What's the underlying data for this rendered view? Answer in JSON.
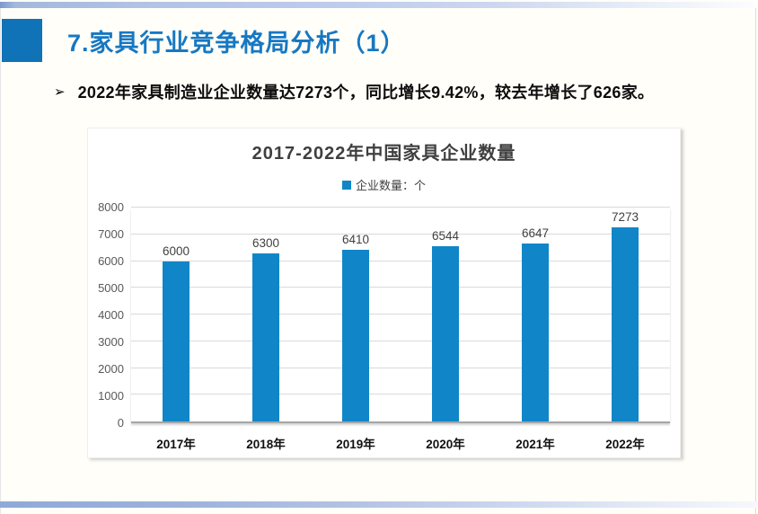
{
  "slide": {
    "title": "7.家具行业竞争格局分析（1）",
    "bullet_marker": "➢",
    "bullet_text": "2022年家具制造业企业数量达7273个，同比增长9.42%，较去年增长了626家。"
  },
  "chart_data": {
    "type": "bar",
    "title": "2017-2022年中国家具企业数量",
    "legend": {
      "label": "企业数量：个",
      "position": "top"
    },
    "categories": [
      "2017年",
      "2018年",
      "2019年",
      "2020年",
      "2021年",
      "2022年"
    ],
    "values": [
      6000,
      6300,
      6410,
      6544,
      6647,
      7273
    ],
    "ylim": [
      0,
      8000
    ],
    "yticks": [
      0,
      1000,
      2000,
      3000,
      4000,
      5000,
      6000,
      7000,
      8000
    ],
    "grid": true,
    "bar_color": "#1086c8",
    "xlabel": "",
    "ylabel": ""
  },
  "colors": {
    "title_blue": "#1778c2",
    "accent_square": "#1073b8",
    "bar_blue": "#1086c8",
    "top_band_left": "#7d99cc",
    "bottom_band_left": "#8fa9d8",
    "gridline": "#d9d9d9"
  }
}
